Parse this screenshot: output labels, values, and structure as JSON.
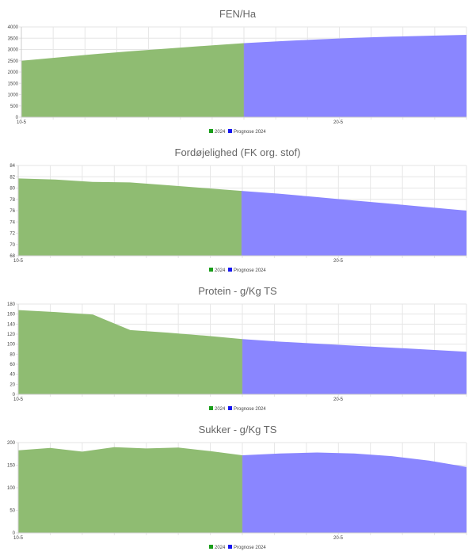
{
  "colors": {
    "actual": "#8fbc72",
    "forecast": "#8a86ff",
    "actual_swatch": "#1a9e1a",
    "forecast_swatch": "#1515f0",
    "grid": "#e6e6e6"
  },
  "chart_data": [
    {
      "type": "area",
      "title": "FEN/Ha",
      "x_labels": [
        "10-5",
        "20-5"
      ],
      "ylim": [
        0,
        4000
      ],
      "yticks": [
        0,
        500,
        1000,
        1500,
        2000,
        2500,
        3000,
        3500,
        4000
      ],
      "legend": [
        "2024",
        "Prognose 2024"
      ],
      "series": [
        {
          "name": "2024",
          "values": [
            2500,
            2650,
            2800,
            2930,
            3050,
            3170,
            3280
          ]
        },
        {
          "name": "Prognose 2024",
          "values": [
            3280,
            3370,
            3450,
            3520,
            3570,
            3610,
            3650
          ]
        }
      ]
    },
    {
      "type": "area",
      "title": "Fordøjelighed (FK org. stof)",
      "x_labels": [
        "10-5",
        "20-5"
      ],
      "ylim": [
        68,
        84
      ],
      "yticks": [
        68,
        70,
        72,
        74,
        76,
        78,
        80,
        82,
        84
      ],
      "legend": [
        "2024",
        "Prognose 2024"
      ],
      "series": [
        {
          "name": "2024",
          "values": [
            81.7,
            81.5,
            81.1,
            81.0,
            80.5,
            80.0,
            79.5
          ]
        },
        {
          "name": "Prognose 2024",
          "values": [
            79.5,
            79.0,
            78.4,
            77.8,
            77.2,
            76.6,
            76.0
          ]
        }
      ]
    },
    {
      "type": "area",
      "title": "Protein - g/Kg TS",
      "x_labels": [
        "10-5",
        "20-5"
      ],
      "ylim": [
        0,
        180
      ],
      "yticks": [
        0,
        20,
        40,
        60,
        80,
        100,
        120,
        140,
        160,
        180
      ],
      "legend": [
        "2024",
        "Prognose 2024"
      ],
      "series": [
        {
          "name": "2024",
          "values": [
            168,
            164,
            159,
            128,
            123,
            117,
            110
          ]
        },
        {
          "name": "Prognose 2024",
          "values": [
            110,
            105,
            101,
            97,
            93,
            89,
            85
          ]
        }
      ]
    },
    {
      "type": "area",
      "title": "Sukker - g/Kg TS",
      "x_labels": [
        "10-5",
        "20-5"
      ],
      "ylim": [
        0,
        200
      ],
      "yticks": [
        0,
        50,
        100,
        150,
        200
      ],
      "legend": [
        "2024",
        "Prognose 2024"
      ],
      "series": [
        {
          "name": "2024",
          "values": [
            183,
            188,
            180,
            190,
            187,
            189,
            181,
            172
          ]
        },
        {
          "name": "Prognose 2024",
          "values": [
            172,
            176,
            178,
            176,
            170,
            160,
            146
          ]
        }
      ]
    }
  ]
}
